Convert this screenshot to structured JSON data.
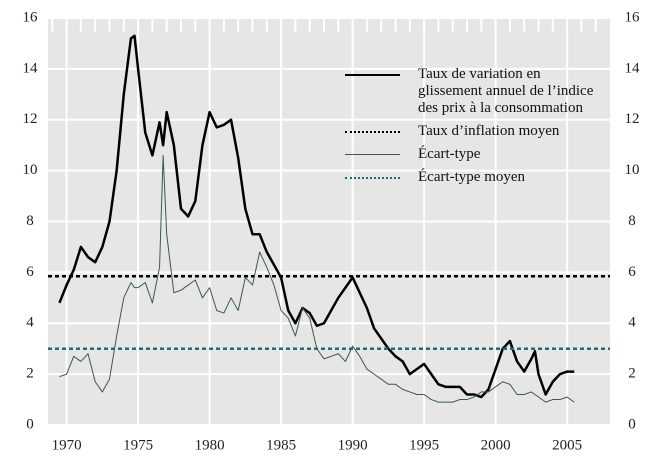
{
  "chart_data": {
    "type": "line",
    "x": [
      1969.5,
      1970,
      1970.5,
      1971,
      1971.5,
      1972,
      1972.5,
      1973,
      1973.5,
      1974,
      1974.5,
      1974.75,
      1975,
      1975.5,
      1976,
      1976.5,
      1976.75,
      1977,
      1977.5,
      1978,
      1978.5,
      1979,
      1979.5,
      1980,
      1980.5,
      1981,
      1981.5,
      1982,
      1982.5,
      1983,
      1983.5,
      1984,
      1984.5,
      1985,
      1985.5,
      1986,
      1986.5,
      1987,
      1987.5,
      1988,
      1988.5,
      1989,
      1989.5,
      1990,
      1990.5,
      1991,
      1991.5,
      1992,
      1992.5,
      1993,
      1993.5,
      1994,
      1994.5,
      1995,
      1995.5,
      1996,
      1996.5,
      1997,
      1997.5,
      1998,
      1998.5,
      1999,
      1999.5,
      2000,
      2000.5,
      2001,
      2001.5,
      2002,
      2002.5,
      2002.75,
      2003,
      2003.5,
      2004,
      2004.5,
      2005,
      2005.5
    ],
    "series": [
      {
        "name": "Taux de variation en glissement annuel de l’indice des prix à la consommation",
        "color": "#000000",
        "width": 2.5,
        "style": "solid",
        "values": [
          4.8,
          5.5,
          6.1,
          7.0,
          6.6,
          6.4,
          7.0,
          8.0,
          10.0,
          13.0,
          15.2,
          15.3,
          14.0,
          11.5,
          10.6,
          11.9,
          11.0,
          12.3,
          11.0,
          8.5,
          8.2,
          8.8,
          11.0,
          12.3,
          11.7,
          11.8,
          12.0,
          10.5,
          8.5,
          7.5,
          7.5,
          6.8,
          6.3,
          5.8,
          4.5,
          4.0,
          4.6,
          4.4,
          3.9,
          4.0,
          4.5,
          5.0,
          5.4,
          5.8,
          5.2,
          4.6,
          3.8,
          3.4,
          3.0,
          2.7,
          2.5,
          2.0,
          2.2,
          2.4,
          2.0,
          1.6,
          1.5,
          1.5,
          1.5,
          1.2,
          1.2,
          1.1,
          1.4,
          2.2,
          3.0,
          3.3,
          2.5,
          2.1,
          2.6,
          2.9,
          2.0,
          1.2,
          1.7,
          2.0,
          2.1,
          2.1
        ]
      },
      {
        "name": "Taux d’inflation moyen",
        "color": "#000000",
        "width": 2.5,
        "style": "dotted",
        "value": 5.85
      },
      {
        "name": "Écart-type",
        "color": "#3a5a4a",
        "width": 1,
        "style": "solid",
        "values": [
          1.9,
          2.0,
          2.7,
          2.5,
          2.8,
          1.7,
          1.3,
          1.8,
          3.5,
          5.0,
          5.6,
          5.4,
          5.4,
          5.6,
          4.8,
          6.2,
          10.6,
          7.5,
          5.2,
          5.3,
          5.5,
          5.7,
          5.0,
          5.4,
          4.5,
          4.4,
          5.0,
          4.5,
          5.8,
          5.5,
          6.8,
          6.2,
          5.5,
          4.5,
          4.2,
          3.5,
          4.6,
          4.2,
          3.0,
          2.6,
          2.7,
          2.8,
          2.5,
          3.1,
          2.7,
          2.2,
          2.0,
          1.8,
          1.6,
          1.6,
          1.4,
          1.3,
          1.2,
          1.2,
          1.0,
          0.9,
          0.9,
          0.9,
          1.0,
          1.0,
          1.1,
          1.3,
          1.3,
          1.5,
          1.7,
          1.6,
          1.2,
          1.2,
          1.3,
          1.2,
          1.1,
          0.9,
          1.0,
          1.0,
          1.1,
          0.9
        ]
      },
      {
        "name": "Écart-type moyen",
        "color": "#1f6f6f",
        "width": 2.5,
        "style": "dotted",
        "value": 3.0
      }
    ],
    "xlim": [
      1968.7,
      2008
    ],
    "xticks": [
      1970,
      1975,
      1980,
      1985,
      1990,
      1995,
      2000,
      2005
    ],
    "xminorticks": [
      1969,
      1970,
      1971,
      1972,
      1973,
      1974,
      1975,
      1976,
      1977,
      1978,
      1979,
      1980,
      1981,
      1982,
      1983,
      1984,
      1985,
      1986,
      1987,
      1988,
      1989,
      1990,
      1991,
      1992,
      1993,
      1994,
      1995,
      1996,
      1997,
      1998,
      1999,
      2000,
      2001,
      2002,
      2003,
      2004,
      2005,
      2006,
      2007
    ],
    "ylim": [
      0,
      16
    ],
    "yticks": [
      0,
      2,
      4,
      6,
      8,
      10,
      12,
      14,
      16
    ],
    "y2lim": [
      0,
      16
    ],
    "y2ticks": [
      0,
      2,
      4,
      6,
      8,
      10,
      12,
      14,
      16
    ],
    "grid": true,
    "legend": "upper right"
  }
}
